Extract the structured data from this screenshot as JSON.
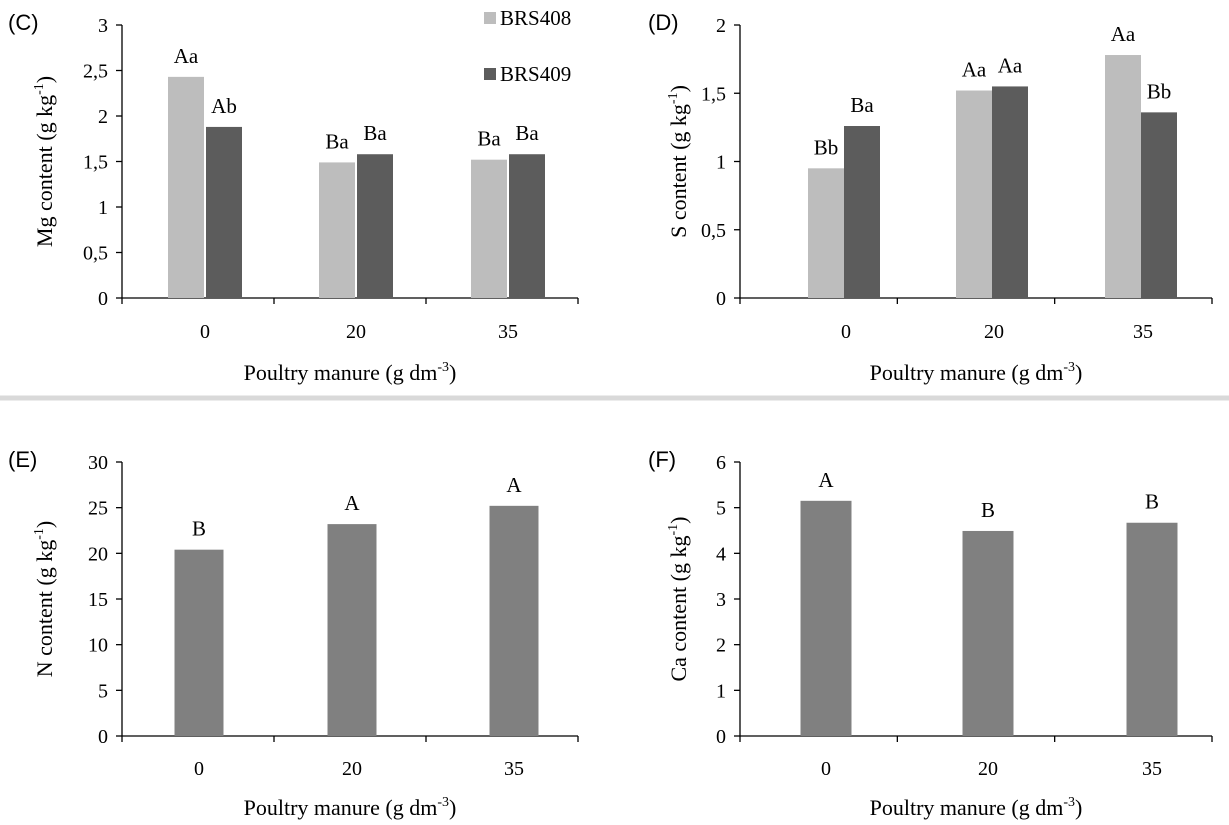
{
  "colors": {
    "BRS408": "#bdbdbd",
    "BRS409": "#5c5c5c",
    "single": "#808080",
    "separator": "#d9d9d9"
  },
  "chart_data": [
    {
      "panel": "(C)",
      "type": "bar",
      "categories": [
        "0",
        "20",
        "35"
      ],
      "series": [
        {
          "name": "BRS408",
          "values": [
            2.43,
            1.49,
            1.52
          ],
          "labels": [
            "Aa",
            "Ba",
            "Ba"
          ]
        },
        {
          "name": "BRS409",
          "values": [
            1.88,
            1.58,
            1.58
          ],
          "labels": [
            "Ab",
            "Ba",
            "Ba"
          ]
        }
      ],
      "yticks": [
        "0",
        "0,5",
        "1",
        "1,5",
        "2",
        "2,5",
        "3"
      ],
      "ylim": [
        0,
        3
      ],
      "ylabel": "Mg content (g kg",
      "ylabel_sup": "-1",
      "ylabel_end": ")",
      "xlabel": "Poultry manure (g dm",
      "xlabel_sup": "-3",
      "xlabel_end": ")",
      "legend": "top-right"
    },
    {
      "panel": "(D)",
      "type": "bar",
      "categories": [
        "0",
        "20",
        "35"
      ],
      "series": [
        {
          "name": "BRS408",
          "values": [
            0.95,
            1.52,
            1.78
          ],
          "labels": [
            "Bb",
            "Aa",
            "Aa"
          ]
        },
        {
          "name": "BRS409",
          "values": [
            1.26,
            1.55,
            1.36
          ],
          "labels": [
            "Ba",
            "Aa",
            "Bb"
          ]
        }
      ],
      "yticks": [
        "0",
        "0,5",
        "1",
        "1,5",
        "2"
      ],
      "ylim": [
        0,
        2
      ],
      "ylabel": "S content (g kg",
      "ylabel_sup": "-1",
      "ylabel_end": ")",
      "xlabel": "Poultry manure (g dm",
      "xlabel_sup": "-3",
      "xlabel_end": ")"
    },
    {
      "panel": "(E)",
      "type": "bar",
      "categories": [
        "0",
        "20",
        "35"
      ],
      "series": [
        {
          "values": [
            20.4,
            23.2,
            25.2
          ],
          "labels": [
            "B",
            "A",
            "A"
          ]
        }
      ],
      "yticks": [
        "0",
        "5",
        "10",
        "15",
        "20",
        "25",
        "30"
      ],
      "ylim": [
        0,
        30
      ],
      "ylabel": "N content (g kg",
      "ylabel_sup": "-1",
      "ylabel_end": ")",
      "xlabel": "Poultry manure (g dm",
      "xlabel_sup": "-3",
      "xlabel_end": ")"
    },
    {
      "panel": "(F)",
      "type": "bar",
      "categories": [
        "0",
        "20",
        "35"
      ],
      "series": [
        {
          "values": [
            5.15,
            4.49,
            4.67
          ],
          "labels": [
            "A",
            "B",
            "B"
          ]
        }
      ],
      "yticks": [
        "0",
        "1",
        "2",
        "3",
        "4",
        "5",
        "6"
      ],
      "ylim": [
        0,
        6
      ],
      "ylabel": "Ca content (g kg",
      "ylabel_sup": "-1",
      "ylabel_end": ")",
      "xlabel": "Poultry manure (g dm",
      "xlabel_sup": "-3",
      "xlabel_end": ")"
    }
  ]
}
